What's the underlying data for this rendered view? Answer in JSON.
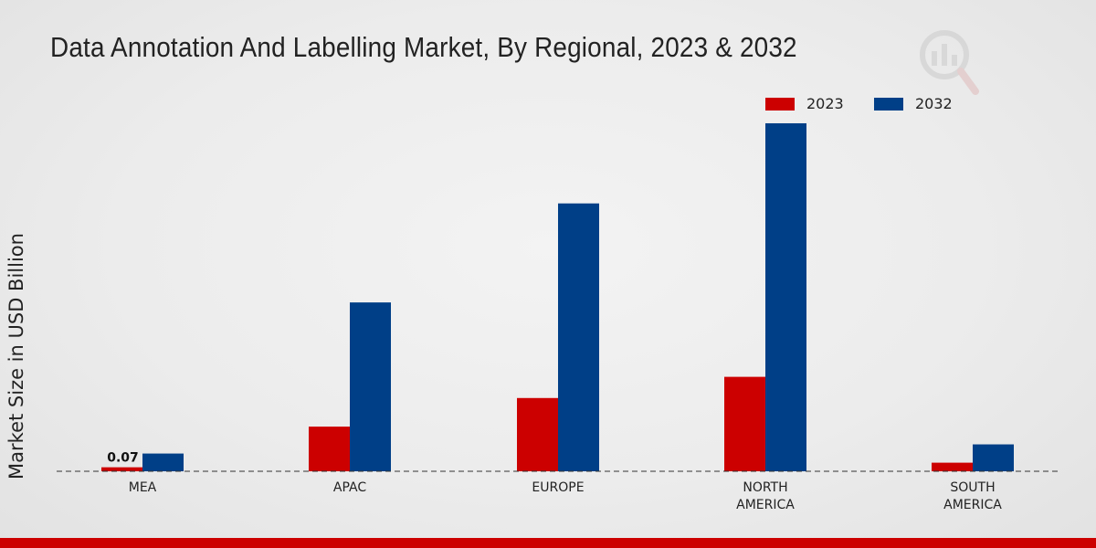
{
  "chart_data": {
    "type": "bar",
    "title": "Data Annotation And Labelling Market, By Regional, 2023 & 2032",
    "xlabel": "",
    "ylabel": "Market Size in USD Billion",
    "ylim": [
      0,
      6.0
    ],
    "grid": false,
    "legend_position": "top-right",
    "categories": [
      [
        "MEA"
      ],
      [
        "APAC"
      ],
      [
        "EUROPE"
      ],
      [
        "NORTH",
        "AMERICA"
      ],
      [
        "SOUTH",
        "AMERICA"
      ]
    ],
    "series": [
      {
        "name": "2023",
        "color": "#cc0000",
        "values": [
          0.07,
          0.78,
          1.28,
          1.65,
          0.15
        ]
      },
      {
        "name": "2032",
        "color": "#003f87",
        "values": [
          0.31,
          2.95,
          4.68,
          6.08,
          0.47
        ]
      }
    ],
    "data_labels": [
      {
        "series": 0,
        "category": 0,
        "text": "0.07"
      }
    ]
  }
}
